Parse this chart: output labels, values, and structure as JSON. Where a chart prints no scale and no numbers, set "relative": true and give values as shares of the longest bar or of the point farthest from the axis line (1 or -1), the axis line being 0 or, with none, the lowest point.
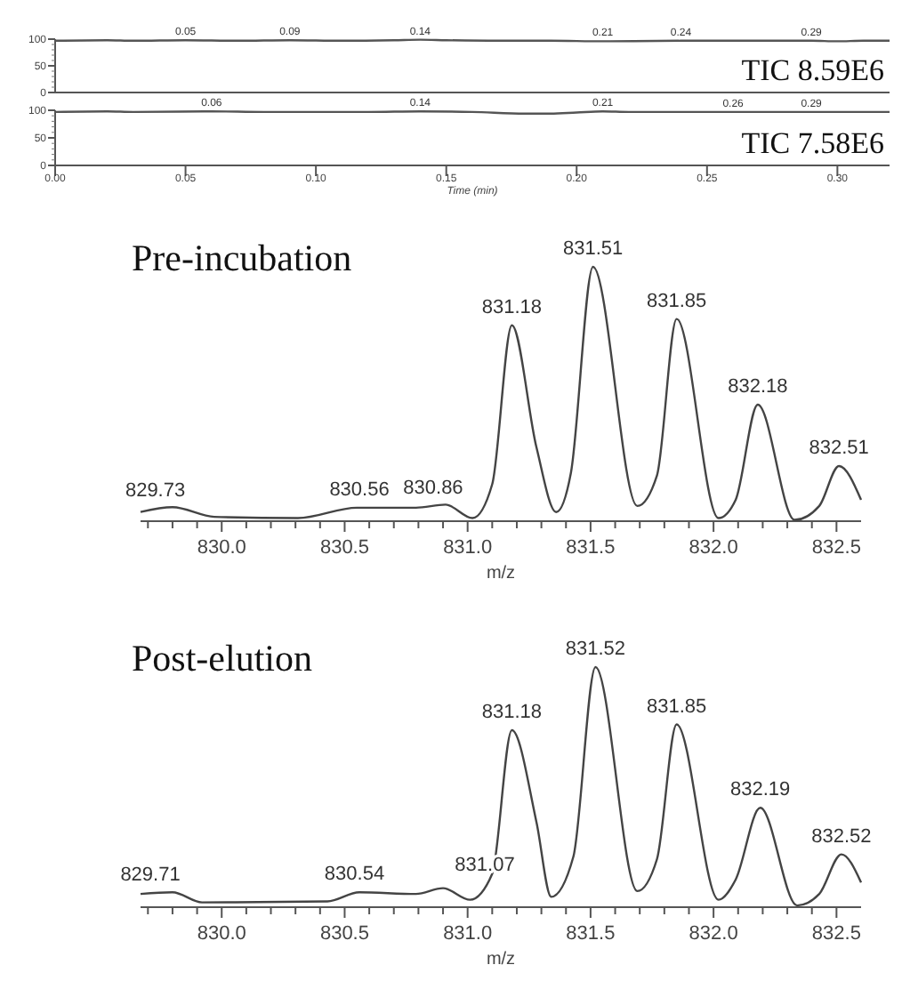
{
  "chart_data": [
    {
      "type": "line",
      "x": [
        0.0,
        0.02,
        0.03,
        0.05,
        0.07,
        0.09,
        0.11,
        0.13,
        0.14,
        0.15,
        0.17,
        0.19,
        0.21,
        0.24,
        0.27,
        0.29,
        0.3,
        0.31,
        0.32
      ],
      "series": [
        {
          "color": "#555555",
          "values": [
            97,
            98,
            97,
            98,
            97,
            98,
            97,
            98,
            99,
            98,
            97,
            97,
            96,
            97,
            97,
            97,
            96,
            97,
            97
          ]
        }
      ],
      "annotations": [
        {
          "text": "0.05",
          "x": 0.05,
          "y": 98
        },
        {
          "text": "0.09",
          "x": 0.09,
          "y": 98
        },
        {
          "text": "0.14",
          "x": 0.14,
          "y": 99
        },
        {
          "text": "0.21",
          "x": 0.21,
          "y": 96
        },
        {
          "text": "0.24",
          "x": 0.24,
          "y": 97
        },
        {
          "text": "0.29",
          "x": 0.29,
          "y": 97
        },
        "TIC 8.59E6"
      ],
      "xlim": [
        0,
        0.32
      ],
      "ylim": [
        0,
        100
      ],
      "yticks": [
        0,
        50,
        100
      ],
      "tick_labels": "y"
    },
    {
      "type": "line",
      "x": [
        0.0,
        0.02,
        0.03,
        0.06,
        0.08,
        0.12,
        0.14,
        0.16,
        0.18,
        0.19,
        0.2,
        0.21,
        0.22,
        0.24,
        0.26,
        0.29,
        0.31,
        0.32
      ],
      "series": [
        {
          "color": "#555555",
          "values": [
            97,
            98,
            97,
            98,
            97,
            97,
            98,
            97,
            94,
            94,
            96,
            98,
            97,
            97,
            97,
            97,
            97,
            97
          ]
        }
      ],
      "annotations": [
        {
          "text": "0.06",
          "x": 0.06,
          "y": 98
        },
        {
          "text": "0.14",
          "x": 0.14,
          "y": 98
        },
        {
          "text": "0.21",
          "x": 0.21,
          "y": 98
        },
        {
          "text": "0.26",
          "x": 0.26,
          "y": 97
        },
        {
          "text": "0.29",
          "x": 0.29,
          "y": 97
        },
        "TIC 7.58E6"
      ],
      "xlabel": "Time (min)",
      "xlim": [
        0,
        0.32
      ],
      "ylim": [
        0,
        100
      ],
      "yticks": [
        0,
        50,
        100
      ],
      "xticks": [
        {
          "value": 0,
          "label": "0.00"
        },
        0.05,
        {
          "value": 0.1,
          "label": "0.10"
        },
        0.15,
        {
          "value": 0.2,
          "label": "0.20"
        },
        0.25,
        {
          "value": 0.3,
          "label": "0.30"
        }
      ]
    },
    {
      "type": "line",
      "title": "Pre-incubation",
      "xlabel": "m/z",
      "relative": true,
      "x": [
        829.67,
        829.8,
        829.97,
        830.31,
        830.55,
        830.79,
        830.91,
        831.02,
        831.1,
        831.18,
        831.28,
        831.36,
        831.42,
        831.51,
        831.69,
        831.77,
        831.85,
        832.02,
        832.09,
        832.18,
        832.33,
        832.43,
        832.51,
        832.6
      ],
      "series": [
        {
          "color": "#444444",
          "values": [
            0.036,
            0.055,
            0.017,
            0.012,
            0.053,
            0.053,
            0.065,
            0.012,
            0.145,
            0.77,
            0.29,
            0.036,
            0.19,
            1,
            0.06,
            0.18,
            0.795,
            0.012,
            0.084,
            0.458,
            0.005,
            0.06,
            0.217,
            0.084
          ]
        }
      ],
      "annotations": [
        {
          "text": "829.73",
          "x": 829.73,
          "y": 0.05
        },
        {
          "text": "830.56",
          "x": 830.56,
          "y": 0.053
        },
        {
          "text": "830.86",
          "x": 830.86,
          "y": 0.06
        },
        {
          "text": "831.18",
          "x": 831.18,
          "y": 0.77
        },
        {
          "text": "831.51",
          "x": 831.51,
          "y": 1
        },
        {
          "text": "831.85",
          "x": 831.85,
          "y": 0.795
        },
        {
          "text": "832.18",
          "x": 832.18,
          "y": 0.458
        },
        {
          "text": "832.51",
          "x": 832.51,
          "y": 0.217
        }
      ],
      "xlim": [
        829.67,
        832.6
      ],
      "xticks": [
        {
          "value": 829.7,
          "label": null
        },
        {
          "value": 829.8,
          "label": null
        },
        {
          "value": 829.9,
          "label": null
        },
        {
          "value": 830,
          "label": "830.0"
        },
        {
          "value": 830.1,
          "label": null
        },
        {
          "value": 830.2,
          "label": null
        },
        {
          "value": 830.3,
          "label": null
        },
        {
          "value": 830.4,
          "label": null
        },
        830.5,
        {
          "value": 830.6,
          "label": null
        },
        {
          "value": 830.7,
          "label": null
        },
        {
          "value": 830.8,
          "label": null
        },
        {
          "value": 830.9,
          "label": null
        },
        {
          "value": 831,
          "label": "831.0"
        },
        {
          "value": 831.1,
          "label": null
        },
        {
          "value": 831.2,
          "label": null
        },
        {
          "value": 831.3,
          "label": null
        },
        {
          "value": 831.4,
          "label": null
        },
        831.5,
        {
          "value": 831.6,
          "label": null
        },
        {
          "value": 831.7,
          "label": null
        },
        {
          "value": 831.8,
          "label": null
        },
        {
          "value": 831.9,
          "label": null
        },
        {
          "value": 832,
          "label": "832.0"
        },
        {
          "value": 832.1,
          "label": null
        },
        {
          "value": 832.2,
          "label": null
        },
        {
          "value": 832.3,
          "label": null
        },
        {
          "value": 832.4,
          "label": null
        },
        832.5
      ]
    },
    {
      "type": "line",
      "title": "Post-elution",
      "xlabel": "m/z",
      "relative": true,
      "x": [
        829.67,
        829.8,
        829.92,
        830.43,
        830.56,
        830.79,
        830.9,
        831.01,
        831.1,
        831.18,
        831.28,
        831.34,
        831.43,
        831.52,
        831.69,
        831.77,
        831.85,
        832.02,
        832.09,
        832.19,
        832.34,
        832.43,
        832.52,
        832.6
      ],
      "series": [
        {
          "color": "#444444",
          "values": [
            0.055,
            0.062,
            0.02,
            0.024,
            0.062,
            0.055,
            0.079,
            0.031,
            0.139,
            0.737,
            0.354,
            0.043,
            0.21,
            1,
            0.067,
            0.2,
            0.761,
            0.031,
            0.115,
            0.414,
            0.007,
            0.055,
            0.22,
            0.103
          ]
        }
      ],
      "annotations": [
        {
          "text": "829.71",
          "x": 829.71,
          "y": 0.06
        },
        {
          "text": "830.54",
          "x": 830.54,
          "y": 0.062
        },
        {
          "text": "831.07",
          "x": 831.07,
          "y": 0.1
        },
        {
          "text": "831.18",
          "x": 831.18,
          "y": 0.737
        },
        {
          "text": "831.52",
          "x": 831.52,
          "y": 1
        },
        {
          "text": "831.85",
          "x": 831.85,
          "y": 0.761
        },
        {
          "text": "832.19",
          "x": 832.19,
          "y": 0.414
        },
        {
          "text": "832.52",
          "x": 832.52,
          "y": 0.22
        }
      ],
      "xlim": [
        829.67,
        832.6
      ],
      "xticks": [
        {
          "value": 829.7,
          "label": null
        },
        {
          "value": 829.8,
          "label": null
        },
        {
          "value": 829.9,
          "label": null
        },
        {
          "value": 830,
          "label": "830.0"
        },
        {
          "value": 830.1,
          "label": null
        },
        {
          "value": 830.2,
          "label": null
        },
        {
          "value": 830.3,
          "label": null
        },
        {
          "value": 830.4,
          "label": null
        },
        830.5,
        {
          "value": 830.6,
          "label": null
        },
        {
          "value": 830.7,
          "label": null
        },
        {
          "value": 830.8,
          "label": null
        },
        {
          "value": 830.9,
          "label": null
        },
        {
          "value": 831,
          "label": "831.0"
        },
        {
          "value": 831.1,
          "label": null
        },
        {
          "value": 831.2,
          "label": null
        },
        {
          "value": 831.3,
          "label": null
        },
        {
          "value": 831.4,
          "label": null
        },
        831.5,
        {
          "value": 831.6,
          "label": null
        },
        {
          "value": 831.7,
          "label": null
        },
        {
          "value": 831.8,
          "label": null
        },
        {
          "value": 831.9,
          "label": null
        },
        {
          "value": 832,
          "label": "832.0"
        },
        {
          "value": 832.1,
          "label": null
        },
        {
          "value": 832.2,
          "label": null
        },
        {
          "value": 832.3,
          "label": null
        },
        {
          "value": 832.4,
          "label": null
        },
        832.5
      ]
    }
  ]
}
